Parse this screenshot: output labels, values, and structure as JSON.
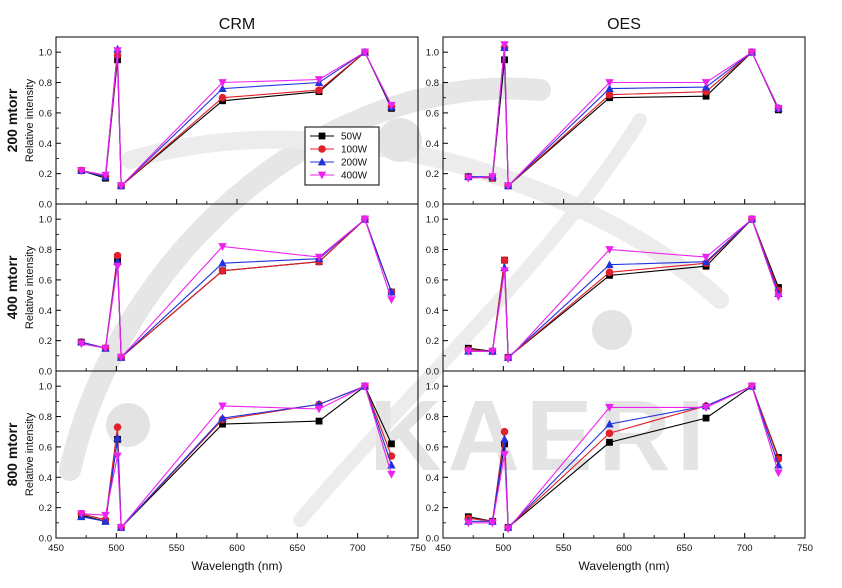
{
  "figure": {
    "watermark": "KAERI",
    "column_titles": [
      "CRM",
      "OES"
    ],
    "row_labels": [
      "200 mtorr",
      "400 mtorr",
      "800 mtorr"
    ],
    "ylabel": "Relative intensity",
    "xlabel": "Wavelength (nm)",
    "x_ticks": [
      450,
      500,
      550,
      600,
      650,
      700,
      750
    ],
    "y_ticks": [
      "0.0",
      "0.2",
      "0.4",
      "0.6",
      "0.8",
      "1.0"
    ],
    "series_colors": [
      "#000000",
      "#e0202a",
      "#2233dd",
      "#ee22ee"
    ],
    "series_markers": [
      "square",
      "circle",
      "triangle-up",
      "triangle-down"
    ],
    "legend": [
      "50W",
      "100W",
      "200W",
      "400W"
    ],
    "legend_location": "panel row 1 col 1, center"
  },
  "chart_data": [
    {
      "type": "line",
      "row_label": "200 mtorr",
      "column_title": "CRM",
      "xlim": [
        450,
        750
      ],
      "ylim": [
        0,
        1.1
      ],
      "x": [
        471,
        491,
        501,
        504,
        588,
        668,
        706,
        728
      ],
      "series": [
        {
          "name": "50W",
          "values": [
            0.22,
            0.17,
            0.95,
            0.12,
            0.68,
            0.74,
            1.0,
            0.63
          ]
        },
        {
          "name": "100W",
          "values": [
            0.22,
            0.18,
            0.98,
            0.12,
            0.7,
            0.75,
            1.0,
            0.64
          ]
        },
        {
          "name": "200W",
          "values": [
            0.22,
            0.18,
            1.02,
            0.12,
            0.76,
            0.8,
            1.0,
            0.64
          ]
        },
        {
          "name": "400W",
          "values": [
            0.22,
            0.19,
            1.01,
            0.12,
            0.8,
            0.82,
            1.0,
            0.65
          ]
        }
      ]
    },
    {
      "type": "line",
      "row_label": "200 mtorr",
      "column_title": "OES",
      "xlim": [
        450,
        750
      ],
      "ylim": [
        0,
        1.1
      ],
      "x": [
        471,
        491,
        501,
        504,
        588,
        668,
        706,
        728
      ],
      "series": [
        {
          "name": "50W",
          "values": [
            0.18,
            0.17,
            0.95,
            0.12,
            0.7,
            0.71,
            1.0,
            0.62
          ]
        },
        {
          "name": "100W",
          "values": [
            0.18,
            0.17,
            1.03,
            0.12,
            0.72,
            0.74,
            1.0,
            0.63
          ]
        },
        {
          "name": "200W",
          "values": [
            0.18,
            0.18,
            1.03,
            0.12,
            0.76,
            0.77,
            1.0,
            0.63
          ]
        },
        {
          "name": "400W",
          "values": [
            0.17,
            0.18,
            1.05,
            0.12,
            0.8,
            0.8,
            1.0,
            0.63
          ]
        }
      ]
    },
    {
      "type": "line",
      "row_label": "400 mtorr",
      "column_title": "CRM",
      "xlim": [
        450,
        750
      ],
      "ylim": [
        0,
        1.1
      ],
      "x": [
        471,
        491,
        501,
        504,
        588,
        668,
        706,
        728
      ],
      "series": [
        {
          "name": "50W",
          "values": [
            0.19,
            0.15,
            0.73,
            0.09,
            0.66,
            0.72,
            1.0,
            0.52
          ]
        },
        {
          "name": "100W",
          "values": [
            0.19,
            0.15,
            0.76,
            0.09,
            0.66,
            0.72,
            1.0,
            0.52
          ]
        },
        {
          "name": "200W",
          "values": [
            0.19,
            0.15,
            0.72,
            0.09,
            0.71,
            0.74,
            1.0,
            0.52
          ]
        },
        {
          "name": "400W",
          "values": [
            0.18,
            0.15,
            0.69,
            0.09,
            0.82,
            0.75,
            1.0,
            0.47
          ]
        }
      ]
    },
    {
      "type": "line",
      "row_label": "400 mtorr",
      "column_title": "OES",
      "xlim": [
        450,
        750
      ],
      "ylim": [
        0,
        1.1
      ],
      "x": [
        471,
        491,
        501,
        504,
        588,
        668,
        706,
        728
      ],
      "series": [
        {
          "name": "50W",
          "values": [
            0.15,
            0.13,
            0.73,
            0.09,
            0.63,
            0.69,
            1.0,
            0.55
          ]
        },
        {
          "name": "100W",
          "values": [
            0.14,
            0.13,
            0.73,
            0.09,
            0.65,
            0.71,
            1.0,
            0.53
          ]
        },
        {
          "name": "200W",
          "values": [
            0.13,
            0.13,
            0.68,
            0.09,
            0.7,
            0.72,
            1.0,
            0.51
          ]
        },
        {
          "name": "400W",
          "values": [
            0.13,
            0.13,
            0.66,
            0.08,
            0.8,
            0.75,
            1.0,
            0.49
          ]
        }
      ]
    },
    {
      "type": "line",
      "row_label": "800 mtorr",
      "column_title": "CRM",
      "xlim": [
        450,
        750
      ],
      "ylim": [
        0,
        1.1
      ],
      "x": [
        471,
        491,
        501,
        504,
        588,
        668,
        706,
        728
      ],
      "series": [
        {
          "name": "50W",
          "values": [
            0.15,
            0.11,
            0.65,
            0.07,
            0.75,
            0.77,
            1.0,
            0.62
          ]
        },
        {
          "name": "100W",
          "values": [
            0.16,
            0.12,
            0.73,
            0.07,
            0.78,
            0.88,
            1.0,
            0.54
          ]
        },
        {
          "name": "200W",
          "values": [
            0.14,
            0.11,
            0.66,
            0.07,
            0.79,
            0.88,
            1.0,
            0.48
          ]
        },
        {
          "name": "400W",
          "values": [
            0.16,
            0.15,
            0.54,
            0.07,
            0.87,
            0.85,
            1.0,
            0.42
          ]
        }
      ]
    },
    {
      "type": "line",
      "row_label": "800 mtorr",
      "column_title": "OES",
      "xlim": [
        450,
        750
      ],
      "ylim": [
        0,
        1.1
      ],
      "x": [
        471,
        491,
        501,
        504,
        588,
        668,
        706,
        728
      ],
      "series": [
        {
          "name": "50W",
          "values": [
            0.14,
            0.11,
            0.62,
            0.07,
            0.63,
            0.79,
            1.0,
            0.53
          ]
        },
        {
          "name": "100W",
          "values": [
            0.13,
            0.11,
            0.7,
            0.07,
            0.69,
            0.87,
            1.0,
            0.52
          ]
        },
        {
          "name": "200W",
          "values": [
            0.11,
            0.11,
            0.65,
            0.07,
            0.75,
            0.87,
            1.0,
            0.48
          ]
        },
        {
          "name": "400W",
          "values": [
            0.1,
            0.1,
            0.55,
            0.06,
            0.86,
            0.86,
            1.0,
            0.43
          ]
        }
      ]
    }
  ]
}
